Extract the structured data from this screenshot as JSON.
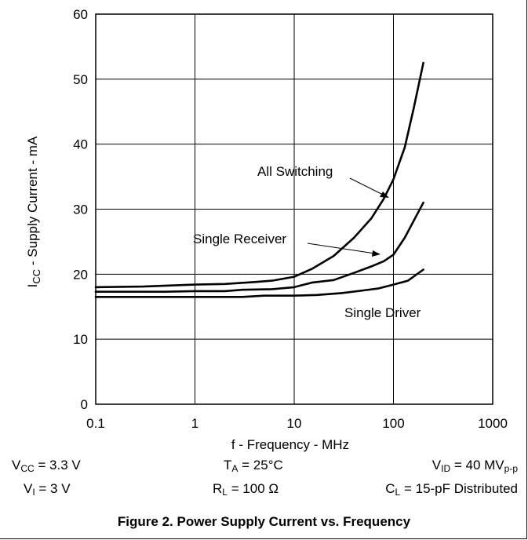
{
  "chart_data": {
    "type": "line",
    "x_scale": "log",
    "xlim": [
      0.1,
      1000
    ],
    "ylim": [
      0,
      60
    ],
    "grid": true,
    "xlabel": "f - Frequency  - MHz",
    "ylabel_main": "I",
    "ylabel_sub": "CC",
    "ylabel_rest": " - Supply Current  - mA",
    "x_ticks": [
      0.1,
      1,
      10,
      100,
      1000
    ],
    "x_tick_labels": [
      "0.1",
      "1",
      "10",
      "100",
      "1000"
    ],
    "y_ticks": [
      0,
      10,
      20,
      30,
      40,
      50,
      60
    ],
    "y_tick_labels": [
      "0",
      "10",
      "20",
      "30",
      "40",
      "50",
      "60"
    ],
    "series": [
      {
        "name": "All Switching",
        "x": [
          0.1,
          0.3,
          1,
          2,
          4,
          6,
          10,
          15,
          25,
          40,
          60,
          80,
          100,
          130,
          160,
          200
        ],
        "y": [
          18.0,
          18.1,
          18.4,
          18.5,
          18.8,
          19.0,
          19.6,
          20.8,
          22.8,
          25.6,
          28.6,
          31.6,
          34.6,
          39.5,
          45.5,
          52.5
        ]
      },
      {
        "name": "Single Receiver",
        "x": [
          0.1,
          0.5,
          1,
          2,
          3,
          6,
          10,
          15,
          25,
          40,
          60,
          80,
          100,
          130,
          200
        ],
        "y": [
          17.3,
          17.3,
          17.4,
          17.4,
          17.6,
          17.7,
          18.0,
          18.7,
          19.1,
          20.2,
          21.2,
          22.0,
          23.0,
          25.6,
          31.0
        ]
      },
      {
        "name": "Single Driver",
        "x": [
          0.1,
          1,
          3,
          5,
          10,
          17,
          30,
          50,
          70,
          100,
          140,
          200
        ],
        "y": [
          16.5,
          16.5,
          16.5,
          16.7,
          16.7,
          16.8,
          17.1,
          17.5,
          17.8,
          18.4,
          19.0,
          20.7
        ]
      }
    ],
    "annotations": {
      "all_switching": "All Switching",
      "single_receiver": "Single Receiver",
      "single_driver": "Single Driver"
    }
  },
  "conditions": {
    "vcc": {
      "main": "V",
      "sub": "CC",
      "rest": " = 3.3 V"
    },
    "ta": {
      "main": "T",
      "sub": "A",
      "rest": " = 25°C"
    },
    "vid": {
      "main": "V",
      "sub": "ID",
      "mid": " = 40 MV",
      "sub2": "p-p"
    },
    "vi": {
      "main": "V",
      "sub": "I",
      "rest": " = 3 V"
    },
    "rl": {
      "main": "R",
      "sub": "L",
      "rest": " = 100 Ω"
    },
    "cl": {
      "main": "C",
      "sub": "L",
      "rest": " = 15-pF Distributed"
    }
  },
  "caption": "Figure 2. Power Supply Current vs. Frequency"
}
